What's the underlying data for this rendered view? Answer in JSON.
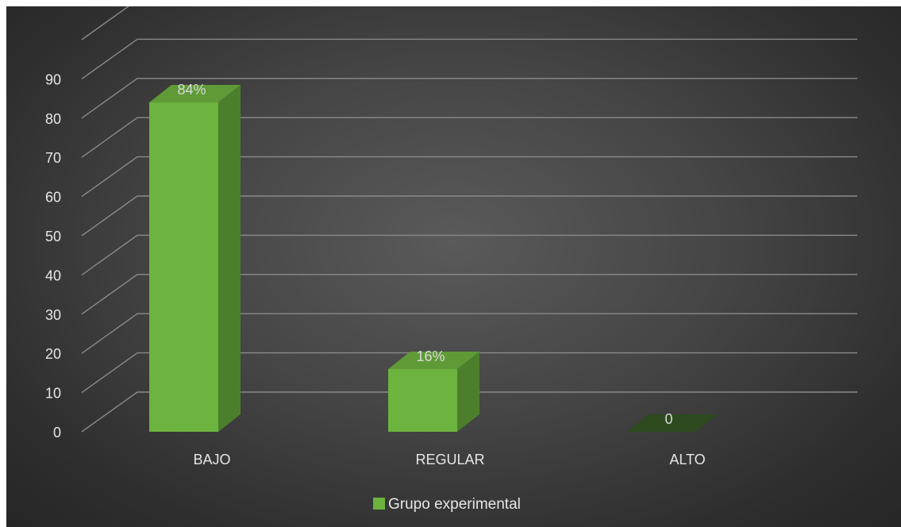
{
  "chart_data": {
    "type": "bar",
    "three_d": true,
    "categories": [
      "BAJO",
      "REGULAR",
      "ALTO"
    ],
    "series": [
      {
        "name": "Grupo experimental",
        "values": [
          84,
          16,
          0
        ],
        "data_labels": [
          "84%",
          "16%",
          "0"
        ],
        "color": "#70ad47"
      }
    ],
    "ylim": [
      0,
      90
    ],
    "y_ticks": [
      "0",
      "10",
      "20",
      "30",
      "40",
      "50",
      "60",
      "70",
      "80",
      "90"
    ],
    "grid": true,
    "legend_position": "bottom",
    "title": "",
    "xlabel": "",
    "ylabel": ""
  },
  "colors": {
    "bar_front": "#6cb33f",
    "bar_side": "#4b7f2c",
    "bar_top": "#5f9a37",
    "zero_bar": "#2d4a1f",
    "grid": "#8a8a8a",
    "text": "#e6e6e6"
  }
}
